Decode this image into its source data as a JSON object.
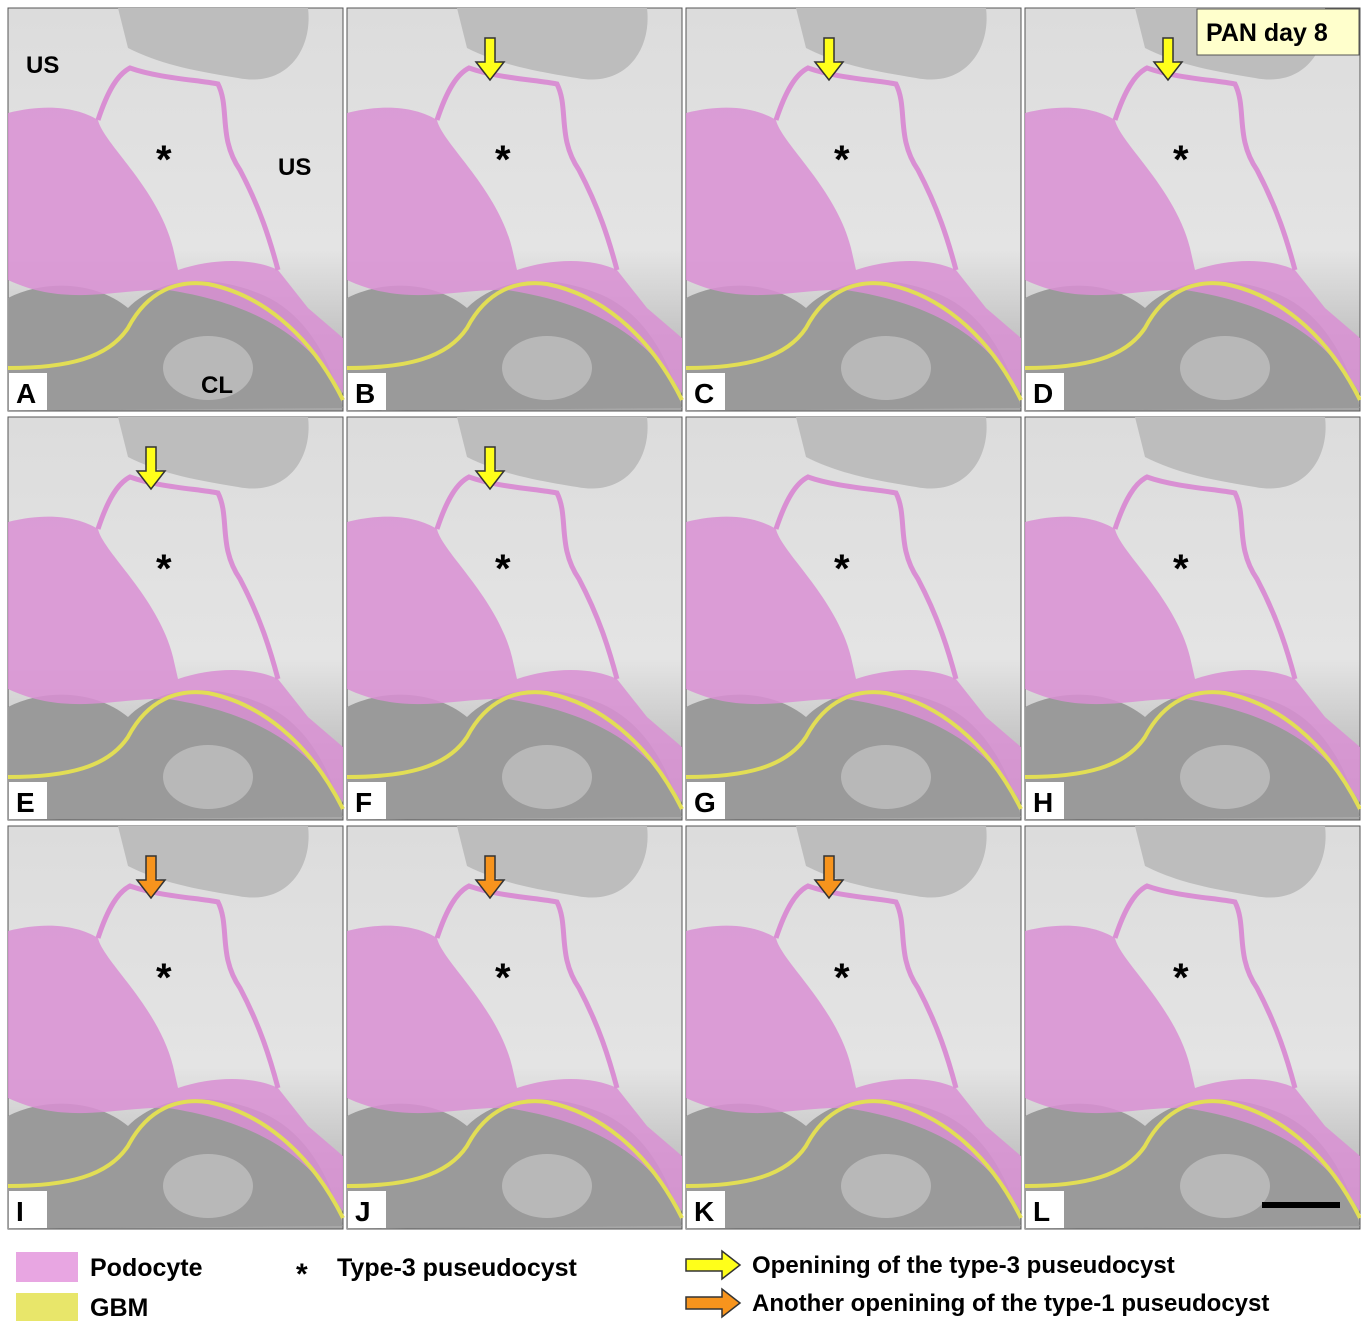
{
  "panels": [
    {
      "label": "A"
    },
    {
      "label": "B"
    },
    {
      "label": "C"
    },
    {
      "label": "D"
    },
    {
      "label": "E"
    },
    {
      "label": "F"
    },
    {
      "label": "G"
    },
    {
      "label": "H"
    },
    {
      "label": "I"
    },
    {
      "label": "J"
    },
    {
      "label": "K"
    },
    {
      "label": "L"
    }
  ],
  "asterisk": "*",
  "annotations": {
    "us_left": "US",
    "us_right": "US",
    "cl": "CL",
    "stage": "PAN day 8"
  },
  "legend": {
    "podocyte": "Podocyte",
    "gbm": "GBM",
    "cyst": "Type-3 puseudocyst",
    "yellow_arrow": "Openining of the type-3 puseudocyst",
    "orange_arrow": "Another openining of the type-1 puseudocyst"
  }
}
